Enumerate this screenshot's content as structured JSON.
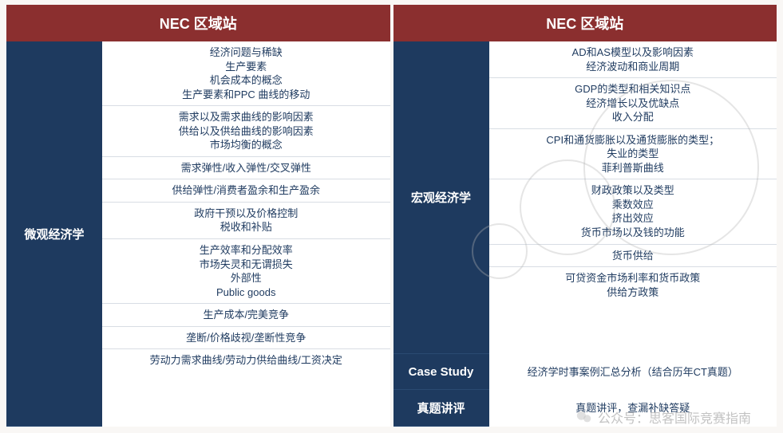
{
  "left": {
    "header": "NEC 区域站",
    "section_label": "微观经济学",
    "groups": [
      [
        "经济问题与稀缺",
        "生产要素",
        "机会成本的概念",
        "生产要素和PPC 曲线的移动"
      ],
      [
        "需求以及需求曲线的影响因素",
        "供给以及供给曲线的影响因素",
        "市场均衡的概念"
      ],
      [
        "需求弹性/收入弹性/交叉弹性"
      ],
      [
        "供给弹性/消费者盈余和生产盈余"
      ],
      [
        "政府干预以及价格控制",
        "税收和补贴"
      ],
      [
        "生产效率和分配效率",
        "市场失灵和无谓损失",
        "外部性",
        "Public goods"
      ],
      [
        "生产成本/完美竞争"
      ],
      [
        "垄断/价格歧视/垄断性竞争"
      ],
      [
        "劳动力需求曲线/劳动力供给曲线/工资决定"
      ]
    ]
  },
  "right": {
    "header": "NEC 区域站",
    "sections": [
      {
        "label": "宏观经济学",
        "groups": [
          [
            "AD和AS模型以及影响因素",
            "经济波动和商业周期"
          ],
          [
            "GDP的类型和相关知识点",
            "经济增长以及优缺点",
            "收入分配"
          ],
          [
            "CPI和通货膨胀以及通货膨胀的类型；",
            "失业的类型",
            "菲利普斯曲线"
          ],
          [
            "财政政策以及类型",
            "乘数效应",
            "挤出效应",
            "货币市场以及钱的功能"
          ],
          [
            "货币供给"
          ],
          [
            "可贷资金市场利率和货币政策",
            "供给方政策"
          ]
        ]
      },
      {
        "label": "Case Study",
        "groups": [
          [
            "经济学时事案例汇总分析（结合历年CT真题）"
          ]
        ]
      },
      {
        "label": "真题讲评",
        "groups": [
          [
            "真题讲评，查漏补缺答疑"
          ]
        ]
      }
    ]
  },
  "watermark": "公众号：思客国际竞赛指南",
  "colors": {
    "header_bg": "#8b2f2f",
    "label_bg": "#1e3a5f",
    "text": "#1e3a5f",
    "border": "#d8dde4",
    "page_bg": "#f9f7f5"
  }
}
